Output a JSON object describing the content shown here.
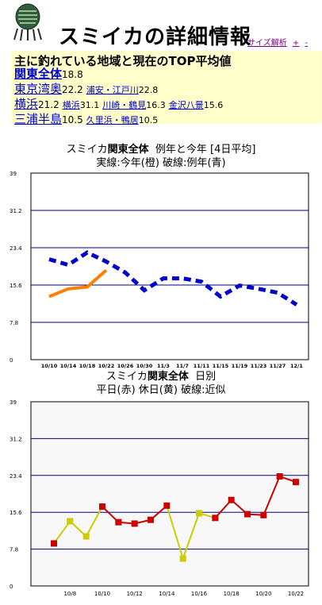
{
  "header": {
    "title": "スミイカの詳細情報",
    "links": [
      "サイズ解析",
      "+",
      "-"
    ]
  },
  "summary": {
    "heading": "主に釣れている地域と現在のTOP平均値",
    "rows": [
      {
        "area": "関東全体",
        "value": "18.8",
        "bold": true,
        "subs": []
      },
      {
        "area": "東京湾奥",
        "value": "22.2",
        "bold": false,
        "subs": [
          {
            "name": "浦安・江戸川",
            "value": "22.8"
          }
        ]
      },
      {
        "area": "横浜",
        "value": "21.2",
        "bold": false,
        "subs": [
          {
            "name": "横浜",
            "value": "31.1"
          },
          {
            "name": "川崎・鶴見",
            "value": "16.3"
          },
          {
            "name": "金沢八景",
            "value": "15.6"
          }
        ]
      },
      {
        "area": "三浦半島",
        "value": "10.5",
        "bold": false,
        "subs": [
          {
            "name": "久里浜・鴨居",
            "value": "10.5"
          }
        ]
      }
    ]
  },
  "chart1": {
    "title_line1_pre": "スミイカ",
    "title_line1_bold": "関東全体",
    "title_line1_post": "例年と今年 [4日平均]",
    "title_line2": "実線:今年(橙) 破線:例年(青)"
  },
  "chart2": {
    "title_line1_pre": "スミイカ",
    "title_line1_bold": "関東全体",
    "title_line1_post": "日別",
    "title_line2": "平日(赤) 休日(黄) 破線:近似"
  },
  "chart_data": [
    {
      "type": "line",
      "title": "スミイカ関東全体 例年と今年 [4日平均]",
      "subtitle": "実線:今年(橙) 破線:例年(青)",
      "x": [
        "10/10",
        "10/14",
        "10/18",
        "10/22",
        "10/26",
        "10/30",
        "11/3",
        "11/7",
        "11/11",
        "11/15",
        "11/19",
        "11/23",
        "11/27",
        "12/1"
      ],
      "ylim": [
        0,
        39
      ],
      "yticks": [
        0,
        7.8,
        15.6,
        23.4,
        31.2,
        39
      ],
      "grid": true,
      "series": [
        {
          "name": "今年",
          "color": "#ff8000",
          "style": "solid",
          "values": [
            13.2,
            14.8,
            15.2,
            18.7,
            null,
            null,
            null,
            null,
            null,
            null,
            null,
            null,
            null,
            null
          ]
        },
        {
          "name": "例年",
          "color": "#0000cc",
          "style": "dashed",
          "values": [
            21.0,
            19.8,
            22.4,
            20.5,
            18.2,
            14.5,
            17.0,
            17.0,
            16.3,
            13.2,
            15.5,
            14.8,
            14.0,
            11.5
          ]
        }
      ]
    },
    {
      "type": "line",
      "title": "スミイカ関東全体 日別",
      "subtitle": "平日(赤) 休日(黄) 破線:近似",
      "x": [
        "10/7",
        "10/8",
        "10/9",
        "10/10",
        "10/11",
        "10/12",
        "10/13",
        "10/14",
        "10/15",
        "10/16",
        "10/17",
        "10/18",
        "10/19",
        "10/20",
        "10/21",
        "10/22"
      ],
      "xtick_labels": [
        "10/8",
        "10/10",
        "10/12",
        "10/14",
        "10/16",
        "10/18",
        "10/20",
        "10/22"
      ],
      "ylim": [
        0,
        39
      ],
      "yticks": [
        0,
        7.8,
        15.6,
        23.4,
        31.2,
        39
      ],
      "grid": true,
      "series": [
        {
          "name": "日別",
          "values": [
            9.0,
            13.7,
            10.5,
            16.8,
            13.5,
            13.2,
            14.0,
            17.0,
            5.8,
            15.4,
            14.4,
            18.2,
            15.2,
            15.0,
            23.2,
            22.0
          ],
          "day_type": [
            "平日",
            "休日",
            "休日",
            "平日",
            "平日",
            "平日",
            "平日",
            "平日",
            "休日",
            "休日",
            "平日",
            "平日",
            "平日",
            "平日",
            "平日",
            "平日"
          ]
        }
      ],
      "colors": {
        "weekday": "#cc0000",
        "holiday": "#cccc00"
      }
    }
  ]
}
